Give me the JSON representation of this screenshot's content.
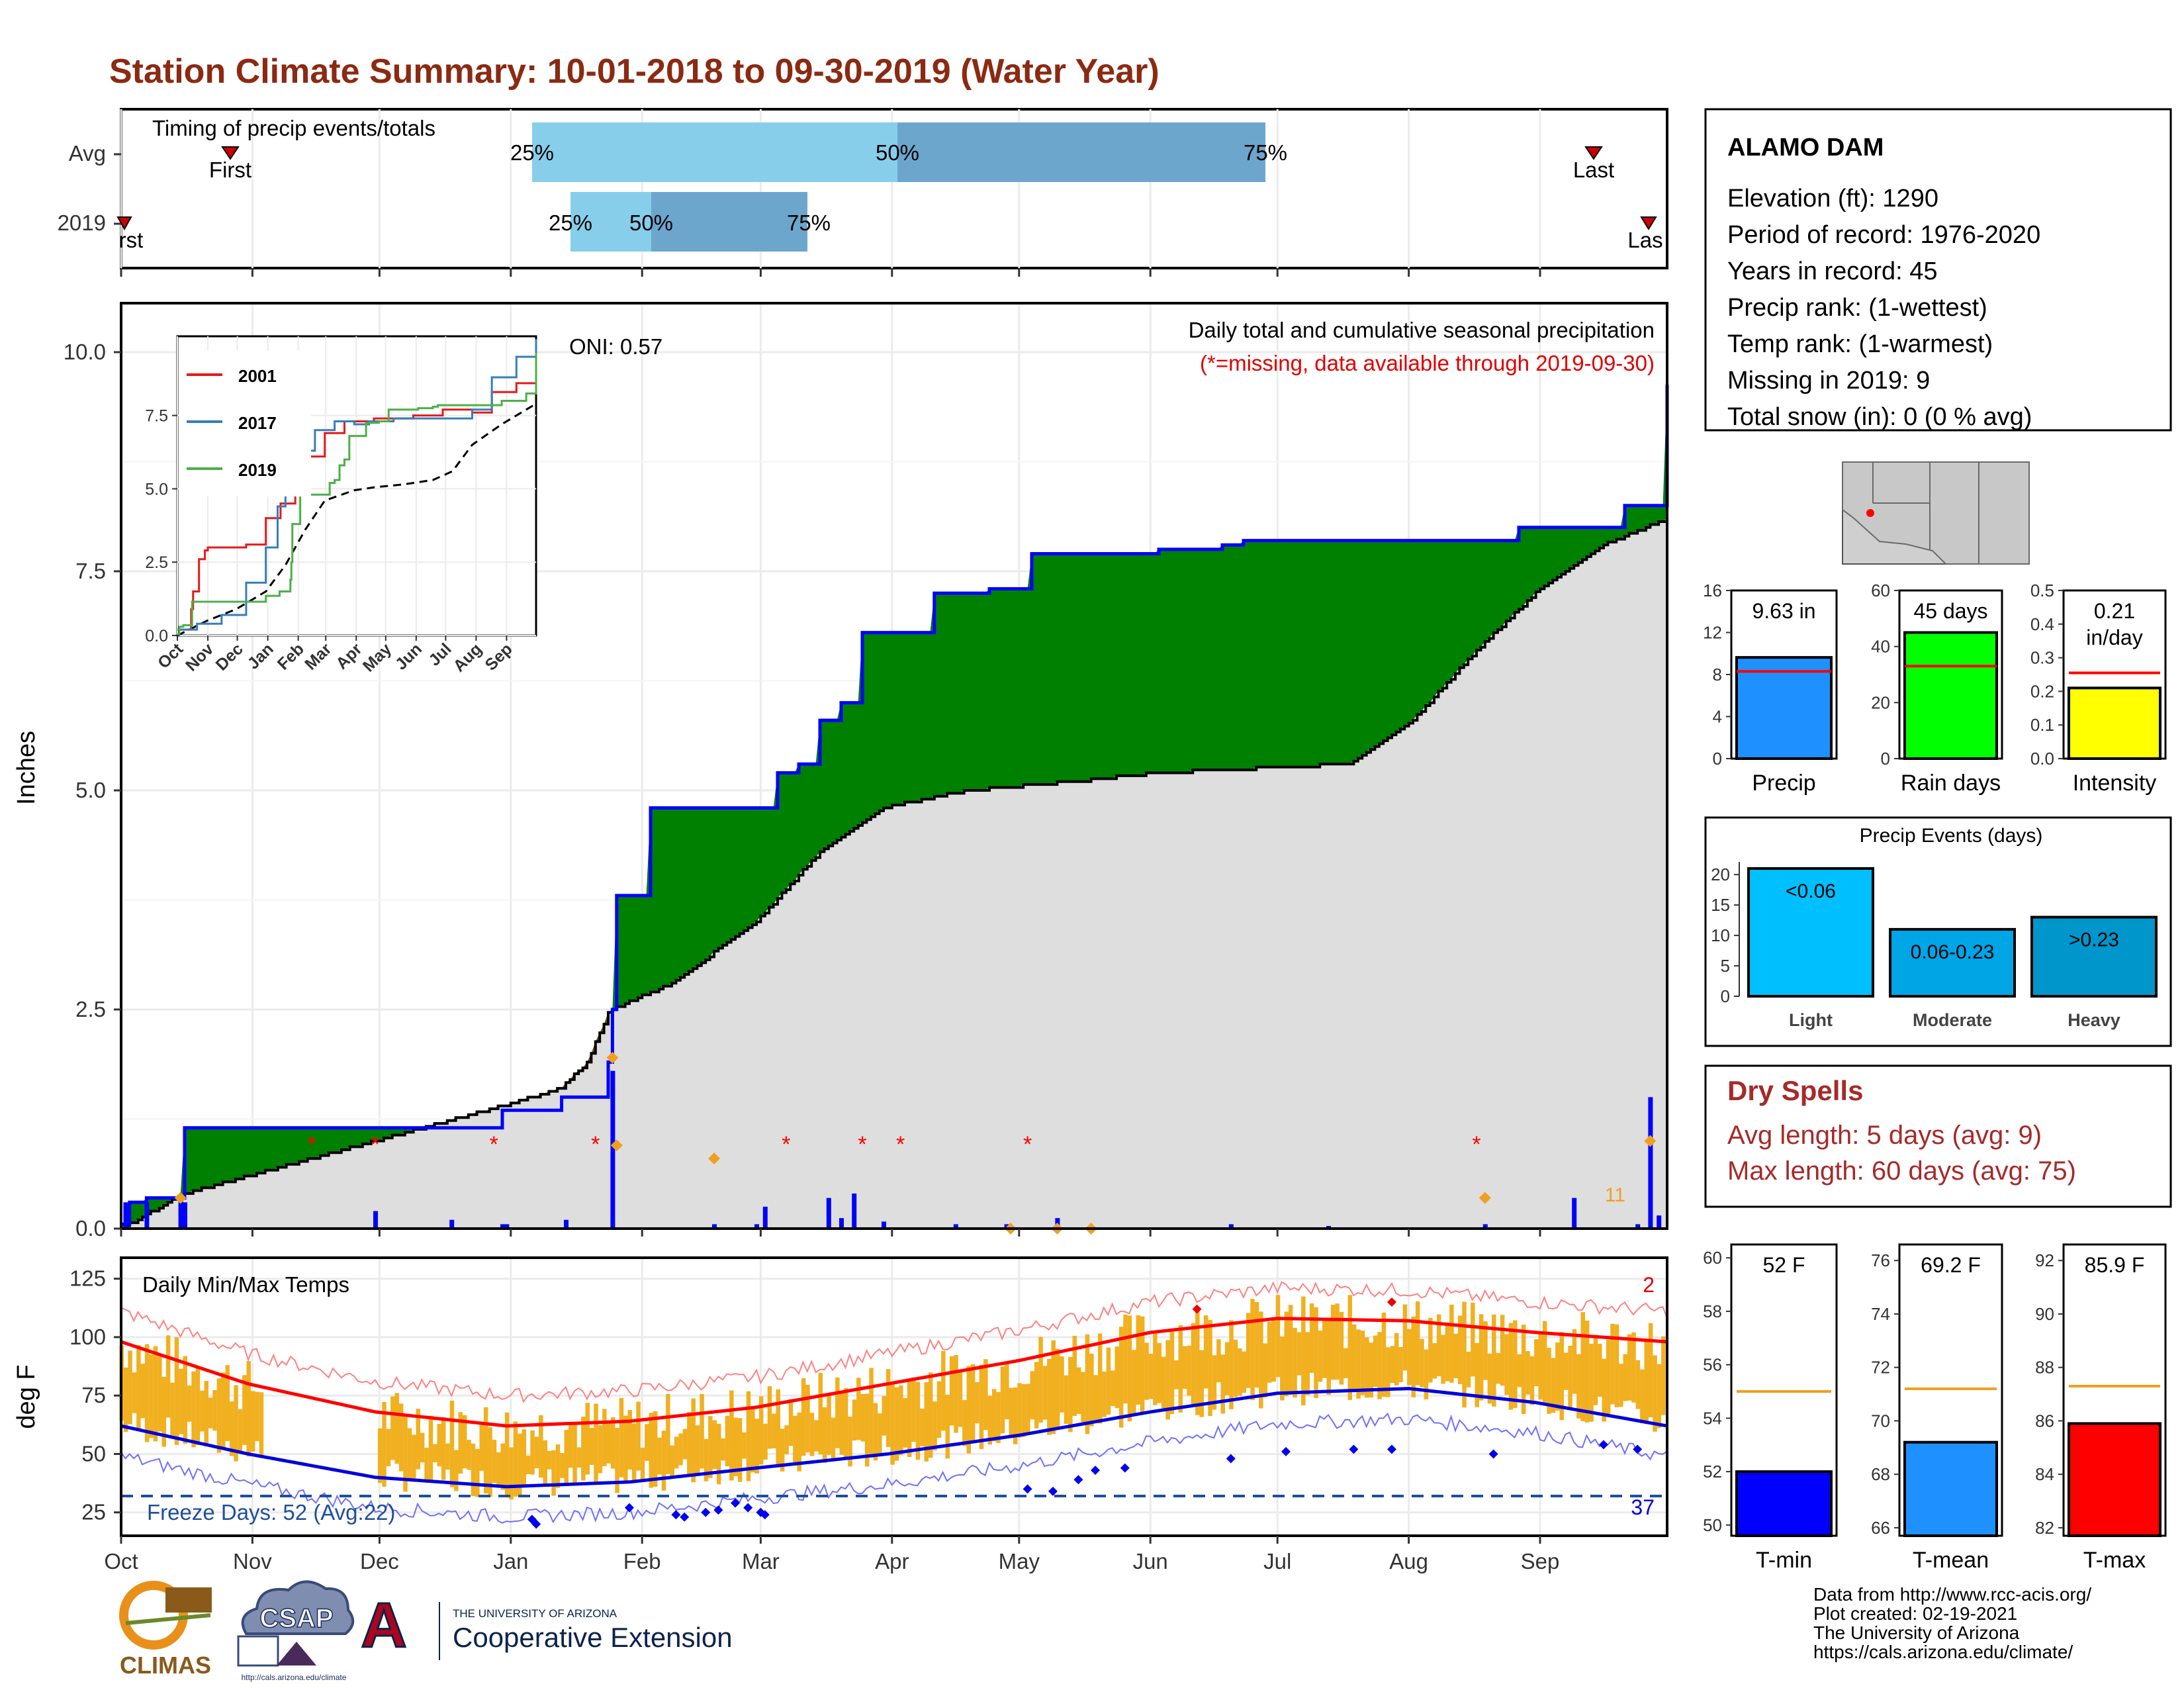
{
  "title": "Station Climate Summary: 10-01-2018 to 09-30-2019 (Water Year)",
  "colors": {
    "title": "#8B2A12",
    "green": "#008000",
    "grey": "#dedede",
    "brown": "#7a4a05",
    "blue": "#0000ff",
    "red": "#ff0000",
    "orange": "#f0b020",
    "light_blue": "#87ceeb",
    "steel_blue": "#6ca6cd",
    "drysp": "#a52a2a",
    "precip_bar": "#1e90ff",
    "raindays_bar": "#00ff00",
    "intensity_bar": "#ffff00",
    "light_bar": "#00bfff",
    "moderate_bar": "#00a5e6",
    "heavy_bar": "#0096cc"
  },
  "timing": {
    "label": "Timing of precip events/totals",
    "rows": [
      "Avg",
      "2019"
    ],
    "avg": {
      "first_label": "First",
      "last_label": "Last",
      "p25": "25%",
      "p50": "50%",
      "p75": "75%"
    },
    "y2019": {
      "first_label": "rst",
      "last_label": "Las",
      "p25": "25%",
      "p50": "50%",
      "p75": "75%"
    }
  },
  "main": {
    "ylabel": "Inches",
    "yticks": [
      "0.0",
      "2.5",
      "5.0",
      "7.5",
      "10.0"
    ],
    "caption": "Daily total and cumulative seasonal precipitation",
    "missing_note": "(*=missing, data available through 2019-09-30)",
    "oni": "ONI: 0.57",
    "snow_count": "11"
  },
  "inset": {
    "yticks": [
      "0.0",
      "2.5",
      "5.0",
      "7.5"
    ],
    "months": [
      "Oct",
      "Nov",
      "Dec",
      "Jan",
      "Feb",
      "Mar",
      "Apr",
      "May",
      "Jun",
      "Jul",
      "Aug",
      "Sep"
    ],
    "legend": [
      {
        "label": "2001",
        "color": "#e41a1c"
      },
      {
        "label": "2017",
        "color": "#377eb8"
      },
      {
        "label": "2019",
        "color": "#4daf4a"
      }
    ]
  },
  "temps": {
    "ylabel": "deg F",
    "yticks": [
      "25",
      "50",
      "75",
      "100",
      "125"
    ],
    "title": "Daily Min/Max Temps",
    "freeze_label": "Freeze Days: 52 (Avg:22)",
    "freeze_count": "37",
    "hot_count": "2"
  },
  "x_months": [
    "Oct",
    "Nov",
    "Dec",
    "Jan",
    "Feb",
    "Mar",
    "Apr",
    "May",
    "Jun",
    "Jul",
    "Aug",
    "Sep"
  ],
  "station": {
    "name": "ALAMO DAM",
    "lines": [
      "Elevation (ft): 1290",
      "Period of record: 1976-2020",
      "Years in record: 45",
      "Precip rank:  (1-wettest)",
      "Temp rank:  (1-warmest)",
      "Missing in 2019: 9",
      "Total snow (in): 0 (0 % avg)"
    ]
  },
  "mini": {
    "precip": {
      "label": "Precip",
      "value_label": "9.63 in",
      "yticks": [
        "0",
        "4",
        "8",
        "12",
        "16"
      ]
    },
    "raindays": {
      "label": "Rain days",
      "value_label": "45 days",
      "yticks": [
        "0",
        "20",
        "40",
        "60"
      ]
    },
    "intensity": {
      "label": "Intensity",
      "value_label": "0.21",
      "value_unit": "in/day",
      "yticks": [
        "0.0",
        "0.1",
        "0.2",
        "0.3",
        "0.4",
        "0.5"
      ]
    }
  },
  "events": {
    "title": "Precip Events (days)",
    "yticks": [
      "0",
      "5",
      "10",
      "15",
      "20"
    ],
    "categories": [
      "Light",
      "Moderate",
      "Heavy"
    ],
    "labels": [
      "<0.06",
      "0.06-0.23",
      ">0.23"
    ]
  },
  "dry": {
    "title": "Dry Spells",
    "avg": "Avg length: 5 days (avg: 9)",
    "max": "Max length: 60 days (avg: 75)"
  },
  "tminis": {
    "tmin": {
      "label": "T-min",
      "value_label": "52 F",
      "yticks": [
        "50",
        "52",
        "54",
        "56",
        "58",
        "60"
      ]
    },
    "tmean": {
      "label": "T-mean",
      "value_label": "69.2 F",
      "yticks": [
        "66",
        "68",
        "70",
        "72",
        "74",
        "76"
      ]
    },
    "tmax": {
      "label": "T-max",
      "value_label": "85.9 F",
      "yticks": [
        "82",
        "84",
        "86",
        "88",
        "90",
        "92"
      ]
    }
  },
  "footer": [
    "Data from http://www.rcc-acis.org/",
    "Plot created: 02-19-2021",
    "The University of Arizona",
    "https://cals.arizona.edu/climate/"
  ],
  "logos": {
    "climas": "CLIMAS",
    "csap": "CSAP",
    "csap_url": "http://cals.arizona.edu/climate",
    "ua_small": "THE UNIVERSITY OF ARIZONA",
    "ua_big": "Cooperative Extension"
  },
  "chart_data": [
    {
      "type": "area",
      "title": "Daily total and cumulative seasonal precipitation",
      "ylabel": "Inches",
      "ylim": [
        0,
        10.5
      ],
      "x_unit": "days since 10-01-2018",
      "series": [
        {
          "name": "2019",
          "x": [
            0,
            2,
            5,
            6,
            14,
            15,
            30,
            45,
            60,
            80,
            90,
            104,
            108,
            115,
            116,
            117,
            125,
            130,
            140,
            155,
            157,
            160,
            165,
            170,
            175,
            181,
            192,
            202,
            205,
            210,
            215,
            232,
            245,
            260,
            265,
            280,
            283,
            290,
            300,
            316,
            330,
            340,
            345,
            350,
            355,
            365
          ],
          "values": [
            0.05,
            0.3,
            0.3,
            0.35,
            0.35,
            1.15,
            1.15,
            1.15,
            1.15,
            1.15,
            1.35,
            1.5,
            1.5,
            1.9,
            2.5,
            3.8,
            4.8,
            4.8,
            4.8,
            5.2,
            5.2,
            5.3,
            5.8,
            6.0,
            6.8,
            6.8,
            7.25,
            7.25,
            7.3,
            7.3,
            7.7,
            7.7,
            7.75,
            7.8,
            7.85,
            7.85,
            7.85,
            7.85,
            7.85,
            7.85,
            8.0,
            8.0,
            8.0,
            8.0,
            8.25,
            9.63
          ]
        },
        {
          "name": "Avg",
          "x": [
            0,
            15,
            30,
            45,
            60,
            75,
            90,
            104,
            110,
            115,
            116,
            130,
            150,
            165,
            180,
            200,
            225,
            245,
            290,
            305,
            320,
            335,
            350,
            365
          ],
          "values": [
            0.0,
            0.4,
            0.6,
            0.8,
            1.0,
            1.2,
            1.4,
            1.6,
            1.9,
            2.45,
            2.5,
            2.8,
            3.5,
            4.3,
            4.8,
            5.0,
            5.1,
            5.2,
            5.3,
            5.8,
            6.6,
            7.3,
            7.8,
            8.1
          ]
        }
      ],
      "daily_bars": {
        "x": [
          1,
          6,
          14,
          15,
          60,
          78,
          90,
          91,
          105,
          116,
          140,
          150,
          152,
          167,
          170,
          173,
          180,
          197,
          209,
          221,
          262,
          285,
          322,
          343,
          358,
          361,
          363
        ],
        "values": [
          0.3,
          0.3,
          0.35,
          0.3,
          0.2,
          0.1,
          0.05,
          0.05,
          0.1,
          1.8,
          0.05,
          0.05,
          0.25,
          0.35,
          0.12,
          0.4,
          0.08,
          0.05,
          0.05,
          0.12,
          0.05,
          0.03,
          0.05,
          0.35,
          0.05,
          1.5,
          0.15
        ]
      }
    },
    {
      "type": "line",
      "title": "Daily Min/Max Temps",
      "ylabel": "deg F",
      "ylim": [
        15,
        130
      ],
      "x_unit": "days since 10-01-2018",
      "series": [
        {
          "name": "Avg max",
          "x": [
            0,
            30,
            60,
            91,
            120,
            150,
            181,
            212,
            243,
            273,
            304,
            334,
            365
          ],
          "values": [
            98,
            80,
            68,
            62,
            64,
            70,
            80,
            90,
            102,
            108,
            107,
            102,
            98
          ]
        },
        {
          "name": "Avg min",
          "x": [
            0,
            30,
            60,
            91,
            120,
            150,
            181,
            212,
            243,
            273,
            304,
            334,
            365
          ],
          "values": [
            62,
            50,
            40,
            36,
            38,
            44,
            50,
            58,
            68,
            76,
            78,
            72,
            62
          ]
        }
      ]
    },
    {
      "type": "bar",
      "categories": [
        "Precip"
      ],
      "values": [
        9.63
      ],
      "ylim": [
        0,
        16
      ]
    },
    {
      "type": "bar",
      "categories": [
        "Rain days"
      ],
      "values": [
        45
      ],
      "ylim": [
        0,
        60
      ]
    },
    {
      "type": "bar",
      "categories": [
        "Intensity"
      ],
      "values": [
        0.21
      ],
      "ylim": [
        0,
        0.5
      ]
    },
    {
      "type": "bar",
      "title": "Precip Events (days)",
      "categories": [
        "Light",
        "Moderate",
        "Heavy"
      ],
      "values": [
        21,
        11,
        13
      ],
      "ylim": [
        0,
        21
      ]
    },
    {
      "type": "bar",
      "categories": [
        "T-min"
      ],
      "values": [
        52
      ],
      "ylim": [
        49.6,
        60.5
      ]
    },
    {
      "type": "bar",
      "categories": [
        "T-mean"
      ],
      "values": [
        69.2
      ],
      "ylim": [
        65.7,
        76.6
      ]
    },
    {
      "type": "bar",
      "categories": [
        "T-max"
      ],
      "values": [
        85.9
      ],
      "ylim": [
        81.7,
        92.6
      ]
    }
  ]
}
